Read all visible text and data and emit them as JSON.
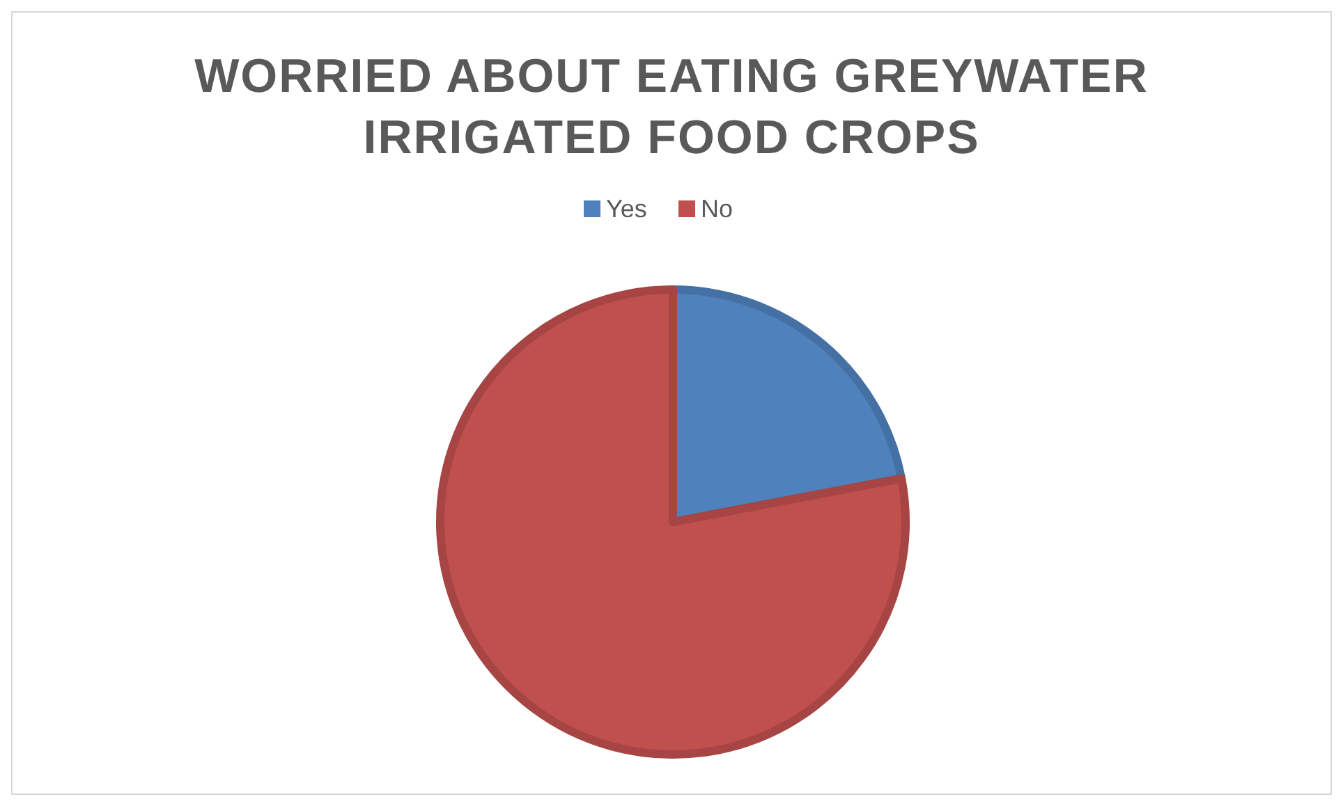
{
  "chart_data": {
    "type": "pie",
    "title": "WORRIED ABOUT EATING GREYWATER IRRIGATED FOOD CROPS",
    "categories": [
      "Yes",
      "No"
    ],
    "values": [
      22,
      78
    ],
    "colors": [
      "#4f81bd",
      "#c0504d"
    ],
    "legend": "top"
  }
}
